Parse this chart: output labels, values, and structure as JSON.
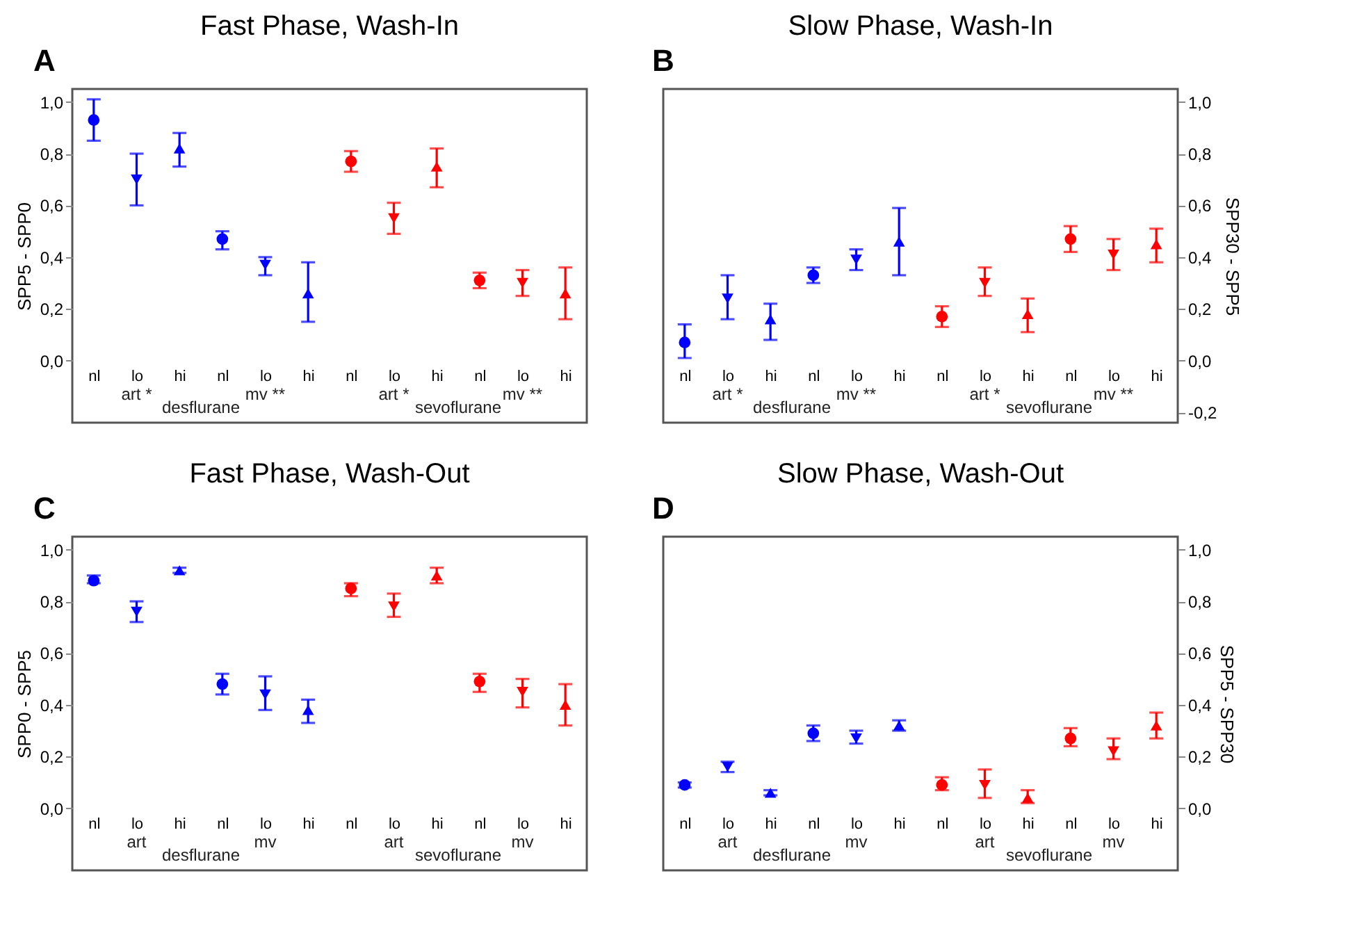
{
  "chart_data": [
    {
      "type": "scatter",
      "title": "Fast Phase, Wash-In",
      "ylabel": "SPP5 - SPP0",
      "categories": [
        "nl",
        "lo",
        "hi",
        "nl",
        "lo",
        "hi",
        "nl",
        "lo",
        "hi",
        "nl",
        "lo",
        "hi"
      ],
      "marker": [
        "circle",
        "triangle-down",
        "triangle",
        "circle",
        "triangle-down",
        "triangle",
        "circle",
        "triangle-down",
        "triangle",
        "circle",
        "triangle-down",
        "triangle"
      ],
      "ylim": [
        -0.24,
        1.05
      ],
      "yticks": [
        {
          "value": 0,
          "label": "0,0"
        },
        {
          "value": 0.2,
          "label": "0,2"
        },
        {
          "value": 0.4,
          "label": "0,4"
        },
        {
          "value": 0.6,
          "label": "0,6"
        },
        {
          "value": 0.8,
          "label": "0,8"
        },
        {
          "value": 1,
          "label": "1,0"
        }
      ],
      "grid": false,
      "annotations": [
        "A",
        "art *",
        "mv **",
        "art *",
        "mv **",
        "desflurane",
        "sevoflurane"
      ],
      "series": [
        {
          "color": "#0000ff",
          "values": [
            0.93,
            0.7,
            0.82,
            null,
            null,
            null,
            null,
            null,
            null,
            null,
            null,
            null
          ],
          "errors": [
            [
              0.85,
              1.01
            ],
            [
              0.6,
              0.8
            ],
            [
              0.75,
              0.88
            ],
            null,
            null,
            null,
            null,
            null,
            null,
            null,
            null,
            null
          ]
        },
        {
          "color": "#0000ff",
          "values": [
            null,
            null,
            null,
            0.47,
            0.37,
            0.26,
            null,
            null,
            null,
            null,
            null,
            null
          ],
          "errors": [
            null,
            null,
            null,
            [
              0.43,
              0.5
            ],
            [
              0.33,
              0.4
            ],
            [
              0.15,
              0.38
            ],
            null,
            null,
            null,
            null,
            null,
            null
          ]
        },
        {
          "color": "#ff0000",
          "values": [
            null,
            null,
            null,
            null,
            null,
            null,
            0.77,
            0.55,
            0.75,
            null,
            null,
            null
          ],
          "errors": [
            null,
            null,
            null,
            null,
            null,
            null,
            [
              0.73,
              0.81
            ],
            [
              0.49,
              0.61
            ],
            [
              0.67,
              0.82
            ],
            null,
            null,
            null
          ]
        },
        {
          "color": "#ff0000",
          "values": [
            null,
            null,
            null,
            null,
            null,
            null,
            null,
            null,
            null,
            0.31,
            0.3,
            0.26
          ],
          "errors": [
            null,
            null,
            null,
            null,
            null,
            null,
            null,
            null,
            null,
            [
              0.28,
              0.34
            ],
            [
              0.25,
              0.35
            ],
            [
              0.16,
              0.36
            ]
          ]
        }
      ]
    },
    {
      "type": "scatter",
      "title": "Slow Phase, Wash-In",
      "y2label": "SPP30 - SPP5",
      "categories": [
        "nl",
        "lo",
        "hi",
        "nl",
        "lo",
        "hi",
        "nl",
        "lo",
        "hi",
        "nl",
        "lo",
        "hi"
      ],
      "marker": [
        "circle",
        "triangle-down",
        "triangle",
        "circle",
        "triangle-down",
        "triangle",
        "circle",
        "triangle-down",
        "triangle",
        "circle",
        "triangle-down",
        "triangle"
      ],
      "y2lim": [
        -0.24,
        1.05
      ],
      "y2ticks": [
        {
          "value": -0.2,
          "label": "-0,2"
        },
        {
          "value": 0,
          "label": "0,0"
        },
        {
          "value": 0.2,
          "label": "0,2"
        },
        {
          "value": 0.4,
          "label": "0,4"
        },
        {
          "value": 0.6,
          "label": "0,6"
        },
        {
          "value": 0.8,
          "label": "0,8"
        },
        {
          "value": 1,
          "label": "1,0"
        }
      ],
      "grid": false,
      "annotations": [
        "B",
        "art *",
        "mv **",
        "art *",
        "mv **",
        "desflurane",
        "sevoflurane"
      ],
      "series": [
        {
          "color": "#0000ff",
          "axis": "y2",
          "values": [
            0.07,
            0.24,
            0.16,
            null,
            null,
            null,
            null,
            null,
            null,
            null,
            null,
            null
          ],
          "errors": [
            [
              0.01,
              0.14
            ],
            [
              0.16,
              0.33
            ],
            [
              0.08,
              0.22
            ],
            null,
            null,
            null,
            null,
            null,
            null,
            null,
            null,
            null
          ]
        },
        {
          "color": "#0000ff",
          "axis": "y2",
          "values": [
            null,
            null,
            null,
            0.33,
            0.39,
            0.46,
            null,
            null,
            null,
            null,
            null,
            null
          ],
          "errors": [
            null,
            null,
            null,
            [
              0.3,
              0.36
            ],
            [
              0.35,
              0.43
            ],
            [
              0.33,
              0.59
            ],
            null,
            null,
            null,
            null,
            null,
            null
          ]
        },
        {
          "color": "#ff0000",
          "axis": "y2",
          "values": [
            null,
            null,
            null,
            null,
            null,
            null,
            0.17,
            0.3,
            0.18,
            null,
            null,
            null
          ],
          "errors": [
            null,
            null,
            null,
            null,
            null,
            null,
            [
              0.13,
              0.21
            ],
            [
              0.25,
              0.36
            ],
            [
              0.11,
              0.24
            ],
            null,
            null,
            null
          ]
        },
        {
          "color": "#ff0000",
          "axis": "y2",
          "values": [
            null,
            null,
            null,
            null,
            null,
            null,
            null,
            null,
            null,
            0.47,
            0.41,
            0.45
          ],
          "errors": [
            null,
            null,
            null,
            null,
            null,
            null,
            null,
            null,
            null,
            [
              0.42,
              0.52
            ],
            [
              0.35,
              0.47
            ],
            [
              0.38,
              0.51
            ]
          ]
        }
      ]
    },
    {
      "type": "scatter",
      "title": "Fast Phase, Wash-Out",
      "ylabel": "SPP0 - SPP5",
      "categories": [
        "nl",
        "lo",
        "hi",
        "nl",
        "lo",
        "hi",
        "nl",
        "lo",
        "hi",
        "nl",
        "lo",
        "hi"
      ],
      "marker": [
        "circle",
        "triangle-down",
        "triangle",
        "circle",
        "triangle-down",
        "triangle",
        "circle",
        "triangle-down",
        "triangle",
        "circle",
        "triangle-down",
        "triangle"
      ],
      "ylim": [
        -0.24,
        1.05
      ],
      "yticks": [
        {
          "value": 0,
          "label": "0,0"
        },
        {
          "value": 0.2,
          "label": "0,2"
        },
        {
          "value": 0.4,
          "label": "0,4"
        },
        {
          "value": 0.6,
          "label": "0,6"
        },
        {
          "value": 0.8,
          "label": "0,8"
        },
        {
          "value": 1,
          "label": "1,0"
        }
      ],
      "grid": false,
      "annotations": [
        "C",
        "art",
        "mv",
        "art",
        "mv",
        "desflurane",
        "sevoflurane"
      ],
      "series": [
        {
          "color": "#0000ff",
          "values": [
            0.88,
            0.76,
            0.92,
            null,
            null,
            null,
            null,
            null,
            null,
            null,
            null,
            null
          ],
          "errors": [
            [
              0.87,
              0.9
            ],
            [
              0.72,
              0.8
            ],
            [
              0.91,
              0.93
            ],
            null,
            null,
            null,
            null,
            null,
            null,
            null,
            null,
            null
          ]
        },
        {
          "color": "#0000ff",
          "values": [
            null,
            null,
            null,
            0.48,
            0.44,
            0.38,
            null,
            null,
            null,
            null,
            null,
            null
          ],
          "errors": [
            null,
            null,
            null,
            [
              0.44,
              0.52
            ],
            [
              0.38,
              0.51
            ],
            [
              0.33,
              0.42
            ],
            null,
            null,
            null,
            null,
            null,
            null
          ]
        },
        {
          "color": "#ff0000",
          "values": [
            null,
            null,
            null,
            null,
            null,
            null,
            0.85,
            0.78,
            0.9,
            null,
            null,
            null
          ],
          "errors": [
            null,
            null,
            null,
            null,
            null,
            null,
            [
              0.82,
              0.87
            ],
            [
              0.74,
              0.83
            ],
            [
              0.87,
              0.93
            ],
            null,
            null,
            null
          ]
        },
        {
          "color": "#ff0000",
          "values": [
            null,
            null,
            null,
            null,
            null,
            null,
            null,
            null,
            null,
            0.49,
            0.45,
            0.4
          ],
          "errors": [
            null,
            null,
            null,
            null,
            null,
            null,
            null,
            null,
            null,
            [
              0.45,
              0.52
            ],
            [
              0.39,
              0.5
            ],
            [
              0.32,
              0.48
            ]
          ]
        }
      ]
    },
    {
      "type": "scatter",
      "title": "Slow Phase, Wash-Out",
      "y2label": "SPP5 - SPP30",
      "categories": [
        "nl",
        "lo",
        "hi",
        "nl",
        "lo",
        "hi",
        "nl",
        "lo",
        "hi",
        "nl",
        "lo",
        "hi"
      ],
      "marker": [
        "circle",
        "triangle-down",
        "triangle",
        "circle",
        "triangle-down",
        "triangle",
        "circle",
        "triangle-down",
        "triangle",
        "circle",
        "triangle-down",
        "triangle"
      ],
      "y2lim": [
        -0.24,
        1.05
      ],
      "y2ticks": [
        {
          "value": 0,
          "label": "0,0"
        },
        {
          "value": 0.2,
          "label": "0,2"
        },
        {
          "value": 0.4,
          "label": "0,4"
        },
        {
          "value": 0.6,
          "label": "0,6"
        },
        {
          "value": 0.8,
          "label": "0,8"
        },
        {
          "value": 1,
          "label": "1,0"
        }
      ],
      "grid": false,
      "annotations": [
        "D",
        "art",
        "mv",
        "art",
        "mv",
        "desflurane",
        "sevoflurane"
      ],
      "series": [
        {
          "color": "#0000ff",
          "axis": "y2",
          "values": [
            0.09,
            0.16,
            0.06,
            null,
            null,
            null,
            null,
            null,
            null,
            null,
            null,
            null
          ],
          "errors": [
            [
              0.08,
              0.1
            ],
            [
              0.14,
              0.18
            ],
            [
              0.05,
              0.07
            ],
            null,
            null,
            null,
            null,
            null,
            null,
            null,
            null,
            null
          ]
        },
        {
          "color": "#0000ff",
          "axis": "y2",
          "values": [
            null,
            null,
            null,
            0.29,
            0.27,
            0.32,
            null,
            null,
            null,
            null,
            null,
            null
          ],
          "errors": [
            null,
            null,
            null,
            [
              0.26,
              0.32
            ],
            [
              0.25,
              0.3
            ],
            [
              0.3,
              0.34
            ],
            null,
            null,
            null,
            null,
            null,
            null
          ]
        },
        {
          "color": "#ff0000",
          "axis": "y2",
          "values": [
            null,
            null,
            null,
            null,
            null,
            null,
            0.09,
            0.09,
            0.04,
            null,
            null,
            null
          ],
          "errors": [
            null,
            null,
            null,
            null,
            null,
            null,
            [
              0.07,
              0.12
            ],
            [
              0.04,
              0.15
            ],
            [
              0.02,
              0.07
            ],
            null,
            null,
            null
          ]
        },
        {
          "color": "#ff0000",
          "axis": "y2",
          "values": [
            null,
            null,
            null,
            null,
            null,
            null,
            null,
            null,
            null,
            0.27,
            0.22,
            0.32
          ],
          "errors": [
            null,
            null,
            null,
            null,
            null,
            null,
            null,
            null,
            null,
            [
              0.24,
              0.31
            ],
            [
              0.19,
              0.27
            ],
            [
              0.27,
              0.37
            ]
          ]
        }
      ]
    }
  ]
}
